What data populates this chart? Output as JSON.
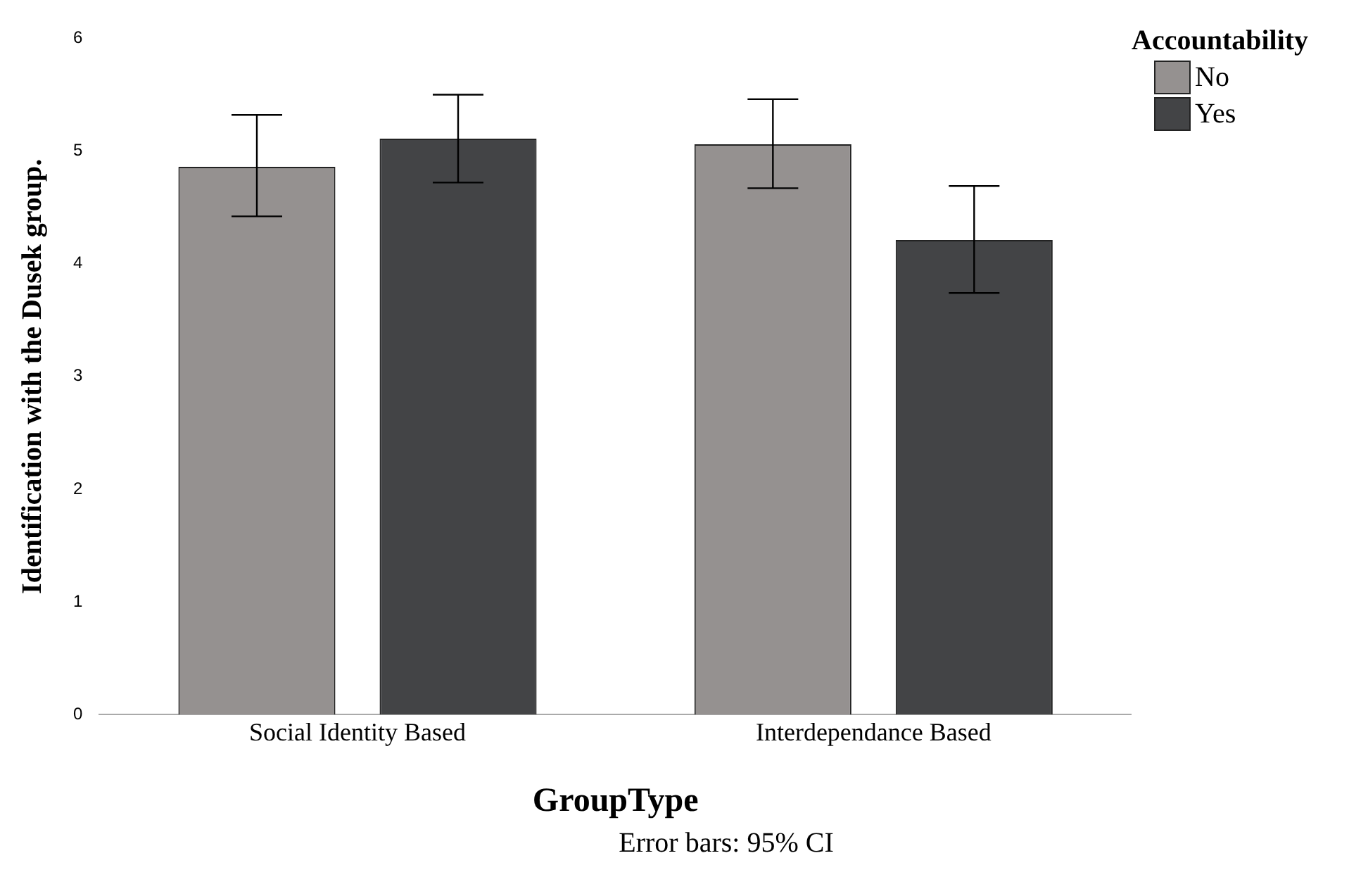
{
  "chart_data": {
    "type": "bar",
    "xlabel": "GroupType",
    "ylabel": "Identification with the Dusek group.",
    "legend_title": "Accountability",
    "categories": [
      "Social Identity Based",
      "Interdependance Based"
    ],
    "series": [
      {
        "name": "No",
        "color": "#959190",
        "values": [
          4.86,
          5.06
        ],
        "errors": [
          [
            4.42,
            5.32
          ],
          [
            4.67,
            5.46
          ]
        ]
      },
      {
        "name": "Yes",
        "color": "#434446",
        "values": [
          5.11,
          4.21
        ],
        "errors": [
          [
            4.72,
            5.5
          ],
          [
            3.74,
            4.69
          ]
        ]
      }
    ],
    "ylim": [
      0,
      6
    ],
    "yticks": [
      0,
      1,
      2,
      3,
      4,
      5,
      6
    ],
    "grid": false,
    "legend": "top right",
    "annotations": [
      "Error bars: 95% CI"
    ]
  }
}
